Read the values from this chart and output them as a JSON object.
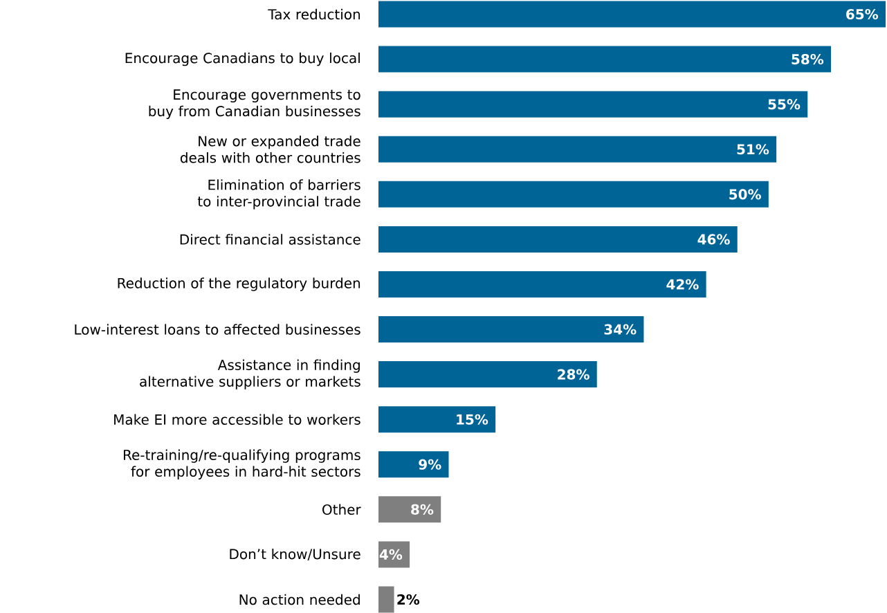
{
  "chart_data": {
    "type": "bar",
    "orientation": "horizontal",
    "categories": [
      "Tax reduction",
      "Encourage Canadians to buy local",
      "Encourage governments to buy from Canadian businesses",
      "New or expanded trade deals with other countries",
      "Elimination of barriers to inter-provincial trade",
      "Direct financial assistance",
      "Reduction of the regulatory burden",
      "Low-interest loans to affected businesses",
      "Assistance in finding alternative suppliers or markets",
      "Make EI more accessible to workers",
      "Re-training/re-qualifying programs for employees in hard-hit sectors",
      "Other",
      "Don’t know/Unsure",
      "No action needed"
    ],
    "values": [
      65,
      58,
      55,
      51,
      50,
      46,
      42,
      34,
      28,
      15,
      9,
      8,
      4,
      2
    ],
    "value_labels": [
      "65%",
      "58%",
      "55%",
      "51%",
      "50%",
      "46%",
      "42%",
      "34%",
      "28%",
      "15%",
      "9%",
      "8%",
      "4%",
      "2%"
    ],
    "colors": [
      "#006496",
      "#006496",
      "#006496",
      "#006496",
      "#006496",
      "#006496",
      "#006496",
      "#006496",
      "#006496",
      "#006496",
      "#006496",
      "#7f7f7f",
      "#7f7f7f",
      "#7f7f7f"
    ]
  }
}
